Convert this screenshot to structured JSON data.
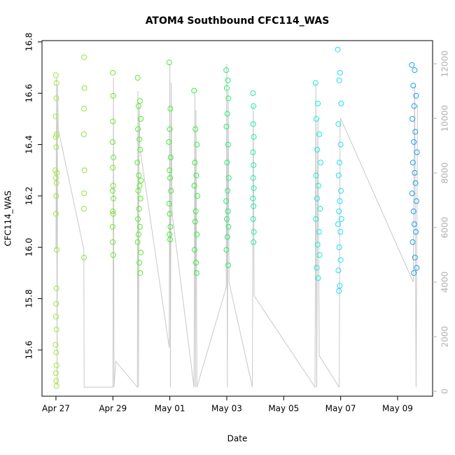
{
  "chart_data": {
    "type": "scatter",
    "title": "ATOM4 Southbound CFC114_WAS",
    "x_label": "Date",
    "y_label": "CFC114_WAS",
    "xlim": [
      -0.49,
      13.23
    ],
    "xticks": [
      {
        "value": 0,
        "label": "Apr 27"
      },
      {
        "value": 2,
        "label": "Apr 29"
      },
      {
        "value": 4,
        "label": "May 01"
      },
      {
        "value": 6,
        "label": "May 03"
      },
      {
        "value": 8,
        "label": "May 05"
      },
      {
        "value": 10,
        "label": "May 07"
      },
      {
        "value": 12,
        "label": "May 09"
      }
    ],
    "ylim": [
      15.42,
      16.805
    ],
    "yticks": [
      15.6,
      15.8,
      {
        "value": 16,
        "label": "16.0"
      },
      16.2,
      16.4,
      16.6,
      16.8
    ],
    "y2lim": [
      -180,
      12850
    ],
    "y2ticks": [
      0,
      2000,
      4000,
      6000,
      8000,
      10000,
      12000
    ],
    "series": [
      {
        "type": "line",
        "axis": "y2",
        "color": "#c8c8c8",
        "x": [
          0,
          0.02,
          0.04,
          0.06,
          0.08,
          0.98,
          0.99,
          2.0,
          2.02,
          2.04,
          2.1,
          2.86,
          2.88,
          2.9,
          2.92,
          2.95,
          3.98,
          4.0,
          4.02,
          4.05,
          4.08,
          4.85,
          4.88,
          4.9,
          4.92,
          4.95,
          5.98,
          6.0,
          6.02,
          6.05,
          6.08,
          6.9,
          6.93,
          6.96,
          9.1,
          9.13,
          9.16,
          9.2,
          9.25,
          9.95,
          9.98,
          10.0,
          12.55,
          12.6,
          12.65,
          12.7
        ],
        "values": [
          5200,
          11500,
          200,
          11200,
          9600,
          5200,
          150,
          150,
          11500,
          150,
          1100,
          150,
          11000,
          150,
          10500,
          8900,
          1600,
          12000,
          150,
          11300,
          6500,
          150,
          10900,
          150,
          10300,
          150,
          3800,
          12000,
          150,
          11000,
          4000,
          150,
          10500,
          3500,
          150,
          11300,
          150,
          10000,
          1300,
          150,
          9800,
          10000,
          4000,
          11200,
          150,
          10500
        ]
      },
      {
        "color": "#a0e63c",
        "x": [
          0,
          0.02,
          0.01,
          -0.01,
          0.02,
          0,
          0.01,
          -0.02,
          0.03,
          0,
          0.02,
          0.01,
          0,
          0.03,
          0.02,
          0.01,
          0,
          0.02,
          -0.01,
          0.01,
          0.02,
          0,
          0.01,
          0.02
        ],
        "values": [
          16.67,
          16.64,
          16.58,
          16.51,
          16.44,
          16.43,
          16.39,
          16.3,
          16.29,
          16.27,
          16.25,
          16.2,
          16.13,
          15.99,
          15.84,
          15.78,
          15.73,
          15.68,
          15.62,
          15.59,
          15.54,
          15.51,
          15.48,
          15.46
        ]
      },
      {
        "color": "#8ee63a",
        "x": [
          0.99,
          1.0,
          0.99,
          0.98,
          1.0,
          0.99,
          0.98,
          0.99
        ],
        "values": [
          16.74,
          16.62,
          16.54,
          16.44,
          16.3,
          16.21,
          16.15,
          15.96
        ]
      },
      {
        "color": "#6fe830",
        "x": [
          2.0,
          2.01,
          2.0,
          1.99,
          2.02,
          2.0,
          2.01,
          1.99,
          2.02,
          2.0,
          2.01,
          1.99,
          2.0,
          2.01
        ],
        "values": [
          16.68,
          16.59,
          16.49,
          16.41,
          16.35,
          16.31,
          16.24,
          16.22,
          16.19,
          16.14,
          16.13,
          16.08,
          16.02,
          15.97
        ]
      },
      {
        "color": "#55ee2a",
        "x": [
          2.87,
          2.95,
          2.9,
          2.98,
          2.88,
          2.93,
          2.96,
          2.86,
          2.91,
          2.99,
          2.94,
          2.89,
          2.97,
          2.92,
          2.88,
          2.95,
          2.9,
          2.87,
          2.98,
          2.93,
          2.96
        ],
        "values": [
          16.66,
          16.57,
          16.55,
          16.5,
          16.46,
          16.42,
          16.38,
          16.33,
          16.28,
          16.26,
          16.24,
          16.22,
          16.19,
          16.15,
          16.11,
          16.08,
          16.05,
          16.02,
          15.98,
          15.94,
          15.9
        ]
      },
      {
        "color": "#3cf030",
        "x": [
          3.98,
          4.02,
          4.0,
          3.97,
          4.03,
          3.99,
          4.01,
          4.04,
          3.98,
          4.0,
          4.02,
          3.99,
          4.01
        ],
        "values": [
          16.72,
          16.54,
          16.46,
          16.41,
          16.35,
          16.3,
          16.27,
          16.22,
          16.17,
          16.13,
          16.08,
          16.05,
          16.03
        ]
      },
      {
        "color": "#2ef23a",
        "x": [
          4.85,
          4.9,
          4.95,
          4.88,
          4.93,
          4.86,
          4.97,
          4.91,
          4.89,
          4.95,
          4.87,
          4.92,
          4.94
        ],
        "values": [
          16.61,
          16.46,
          16.4,
          16.33,
          16.28,
          16.24,
          16.2,
          16.14,
          16.1,
          16.05,
          15.99,
          15.94,
          15.9
        ]
      },
      {
        "color": "#20f070",
        "x": [
          5.98,
          6.04,
          6.0,
          6.06,
          6.02,
          5.99,
          6.05,
          6.01,
          6.07,
          6.03,
          5.98,
          6.04,
          6.0,
          6.06,
          6.02,
          5.99,
          6.05
        ],
        "values": [
          16.69,
          16.65,
          16.62,
          16.58,
          16.52,
          16.47,
          16.4,
          16.33,
          16.27,
          16.22,
          16.18,
          16.14,
          16.11,
          16.08,
          16.04,
          15.99,
          15.93
        ]
      },
      {
        "color": "#18f0a0",
        "x": [
          6.92,
          6.94,
          6.93,
          6.95,
          6.92,
          6.94,
          6.93,
          6.95,
          6.92,
          6.94,
          6.93,
          6.95,
          6.94
        ],
        "values": [
          16.6,
          16.55,
          16.48,
          16.43,
          16.37,
          16.32,
          16.27,
          16.23,
          16.19,
          16.16,
          16.11,
          16.06,
          16.02
        ]
      },
      {
        "color": "#10f0d8",
        "x": [
          9.12,
          9.2,
          9.15,
          9.25,
          9.18,
          9.3,
          9.14,
          9.22,
          9.17,
          9.28,
          9.13,
          9.24,
          9.19,
          9.26,
          9.16,
          9.21
        ],
        "values": [
          16.64,
          16.56,
          16.5,
          16.44,
          16.38,
          16.33,
          16.28,
          16.24,
          16.19,
          16.15,
          16.11,
          16.06,
          16.01,
          15.97,
          15.92,
          15.88
        ]
      },
      {
        "color": "#20e0f0",
        "x": [
          9.9,
          9.98,
          9.95,
          10.02,
          9.92,
          10.0,
          9.96,
          9.93,
          10.01,
          9.97,
          9.94,
          10.03,
          9.91,
          9.99,
          9.95,
          10.0,
          9.92,
          9.97,
          9.94
        ],
        "values": [
          16.77,
          16.68,
          16.65,
          16.56,
          16.48,
          16.4,
          16.33,
          16.28,
          16.22,
          16.18,
          16.14,
          16.11,
          16.09,
          16.06,
          16.0,
          15.95,
          15.91,
          15.85,
          15.83
        ]
      },
      {
        "color": "#1aa0f0",
        "x": [
          12.5,
          12.6,
          12.55,
          12.65,
          12.58,
          12.52,
          12.62,
          12.57,
          12.68,
          12.54,
          12.6,
          12.63,
          12.51,
          12.66,
          12.56,
          12.59,
          12.64,
          12.53,
          12.61,
          12.67,
          12.57
        ],
        "values": [
          16.71,
          16.69,
          16.63,
          16.59,
          16.55,
          16.5,
          16.45,
          16.41,
          16.37,
          16.33,
          16.29,
          16.25,
          16.21,
          16.18,
          16.14,
          16.09,
          16.06,
          16.02,
          15.96,
          15.92,
          15.9
        ]
      }
    ]
  }
}
